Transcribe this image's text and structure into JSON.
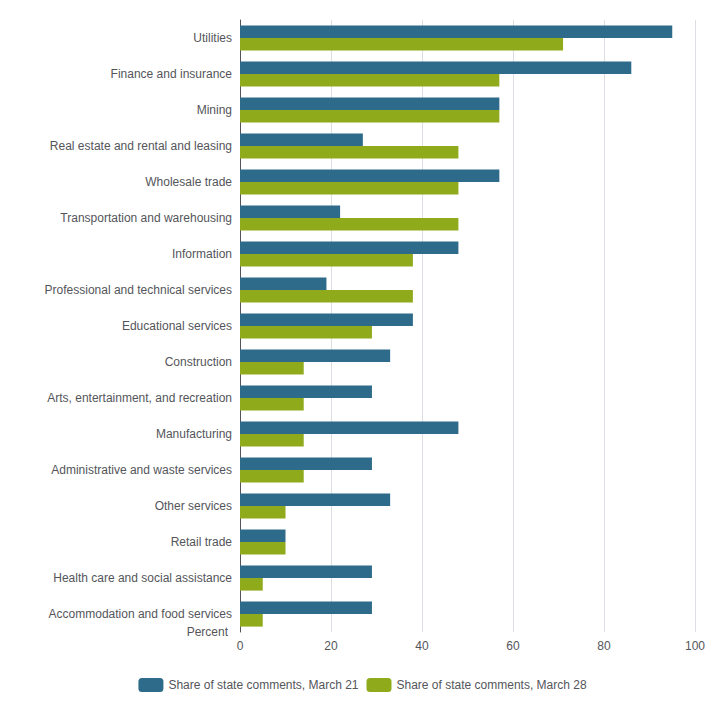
{
  "chart_data": {
    "type": "bar",
    "orientation": "horizontal",
    "xlabel": "Percent",
    "categories": [
      "Utilities",
      "Finance and insurance",
      "Mining",
      "Real estate and rental and leasing",
      "Wholesale trade",
      "Transportation and warehousing",
      "Information",
      "Professional and technical services",
      "Educational services",
      "Construction",
      "Arts, entertainment, and recreation",
      "Manufacturing",
      "Administrative and waste services",
      "Other services",
      "Retail trade",
      "Health care and social assistance",
      "Accommodation and food services"
    ],
    "series": [
      {
        "name": "Share of state comments, March 21",
        "color": "#2e6b8a",
        "values": [
          95,
          86,
          57,
          27,
          57,
          22,
          48,
          19,
          38,
          33,
          29,
          48,
          29,
          33,
          10,
          29,
          29
        ]
      },
      {
        "name": "Share of state comments, March 28",
        "color": "#8faa1b",
        "values": [
          71,
          57,
          57,
          48,
          48,
          48,
          38,
          38,
          29,
          14,
          14,
          14,
          14,
          10,
          10,
          5,
          5
        ]
      }
    ],
    "xlim": [
      0,
      100
    ],
    "xticks": [
      0,
      20,
      40,
      60,
      80,
      100
    ],
    "grid": true,
    "legend": "bottom"
  }
}
